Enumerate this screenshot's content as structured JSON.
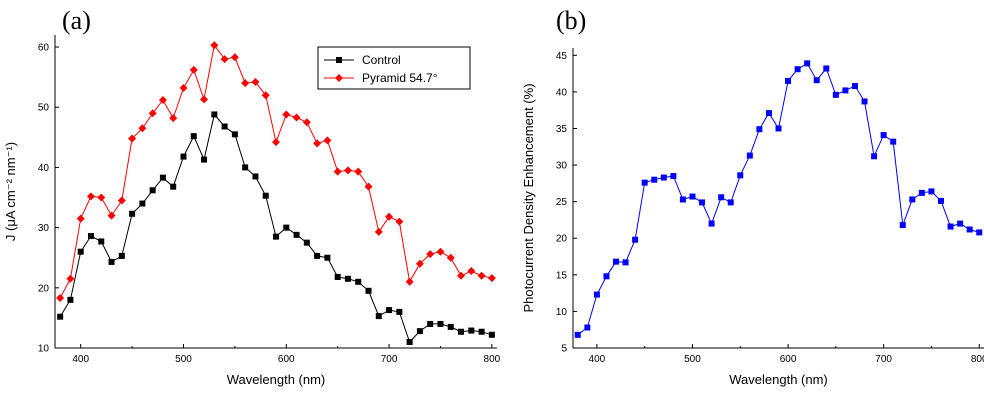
{
  "chart_data": [
    {
      "id": "a",
      "type": "line",
      "panel_label": "(a)",
      "xlabel": "Wavelength (nm)",
      "ylabel": "J (μA cm⁻² nm⁻¹)",
      "xlim": [
        375,
        805
      ],
      "ylim": [
        10,
        62
      ],
      "xticks": [
        400,
        500,
        600,
        700,
        800
      ],
      "yticks": [
        10,
        20,
        30,
        40,
        50,
        60
      ],
      "legend_position": "top-right",
      "series": [
        {
          "name": "Control",
          "color": "#000000",
          "marker": "square",
          "x": [
            380,
            390,
            400,
            410,
            420,
            430,
            440,
            450,
            460,
            470,
            480,
            490,
            500,
            510,
            520,
            530,
            540,
            550,
            560,
            570,
            580,
            590,
            600,
            610,
            620,
            630,
            640,
            650,
            660,
            670,
            680,
            690,
            700,
            710,
            720,
            730,
            740,
            750,
            760,
            770,
            780,
            790,
            800
          ],
          "y": [
            15.2,
            18.0,
            26.0,
            28.6,
            27.7,
            24.3,
            25.3,
            32.3,
            34.0,
            36.2,
            38.3,
            36.8,
            41.8,
            45.2,
            41.3,
            48.8,
            46.8,
            45.5,
            40.0,
            38.5,
            35.3,
            28.5,
            30.0,
            28.8,
            27.5,
            25.3,
            25.0,
            21.8,
            21.5,
            21.0,
            19.5,
            15.3,
            16.3,
            16.0,
            11.0,
            12.8,
            14.0,
            14.0,
            13.5,
            12.7,
            12.9,
            12.7,
            12.2
          ]
        },
        {
          "name": "Pyramid 54.7°",
          "color": "#ff0000",
          "marker": "diamond",
          "x": [
            380,
            390,
            400,
            410,
            420,
            430,
            440,
            450,
            460,
            470,
            480,
            490,
            500,
            510,
            520,
            530,
            540,
            550,
            560,
            570,
            580,
            590,
            600,
            610,
            620,
            630,
            640,
            650,
            660,
            670,
            680,
            690,
            700,
            710,
            720,
            730,
            740,
            750,
            760,
            770,
            780,
            790,
            800
          ],
          "y": [
            18.3,
            21.5,
            31.5,
            35.2,
            35.0,
            32.0,
            34.5,
            44.8,
            46.5,
            49.0,
            51.2,
            48.2,
            53.2,
            56.2,
            51.3,
            60.3,
            58.0,
            58.3,
            54.0,
            54.2,
            52.0,
            44.2,
            48.8,
            48.3,
            47.5,
            44.0,
            44.5,
            39.3,
            39.5,
            39.3,
            36.8,
            29.3,
            31.8,
            31.0,
            21.0,
            24.0,
            25.6,
            26.0,
            25.0,
            22.0,
            22.8,
            22.0,
            21.6
          ]
        }
      ]
    },
    {
      "id": "b",
      "type": "line",
      "panel_label": "(b)",
      "xlabel": "Wavelength (nm)",
      "ylabel": "Photocurrent Density Enhancement (%)",
      "xlim": [
        375,
        805
      ],
      "ylim": [
        5,
        46
      ],
      "xticks": [
        400,
        500,
        600,
        700,
        800
      ],
      "yticks": [
        5,
        10,
        15,
        20,
        25,
        30,
        35,
        40,
        45
      ],
      "series": [
        {
          "color": "#0000ff",
          "marker": "square",
          "x": [
            380,
            390,
            400,
            410,
            420,
            430,
            440,
            450,
            460,
            470,
            480,
            490,
            500,
            510,
            520,
            530,
            540,
            550,
            560,
            570,
            580,
            590,
            600,
            610,
            620,
            630,
            640,
            650,
            660,
            670,
            680,
            690,
            700,
            710,
            720,
            730,
            740,
            750,
            760,
            770,
            780,
            790,
            800
          ],
          "y": [
            6.8,
            7.8,
            12.3,
            14.8,
            16.8,
            16.7,
            19.8,
            27.6,
            28.0,
            28.3,
            28.5,
            25.3,
            25.7,
            24.9,
            22.0,
            25.6,
            24.9,
            28.6,
            31.3,
            34.9,
            37.1,
            35.0,
            41.5,
            43.1,
            43.9,
            41.6,
            43.2,
            39.6,
            40.2,
            40.8,
            38.7,
            31.2,
            34.1,
            33.2,
            21.8,
            25.3,
            26.2,
            26.4,
            25.1,
            21.6,
            22.0,
            21.2,
            20.8
          ]
        }
      ]
    }
  ]
}
